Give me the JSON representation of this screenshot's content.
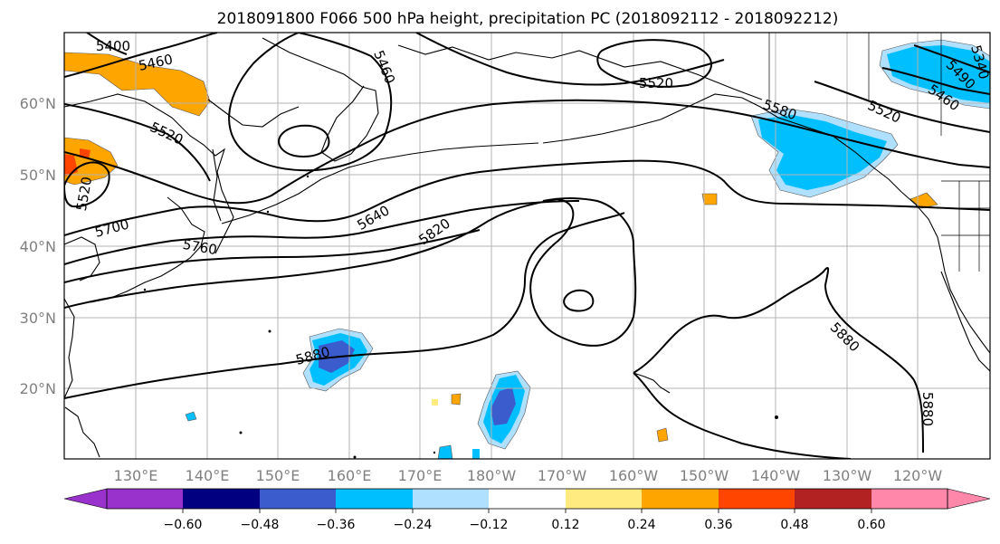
{
  "title": "2018091800 F066 500 hPa height, precipitation PC (2018092112 - 2018092212)",
  "map": {
    "lat_ticks": [
      "60°N",
      "50°N",
      "40°N",
      "30°N",
      "20°N"
    ],
    "lon_ticks": [
      "130°E",
      "140°E",
      "150°E",
      "160°E",
      "170°E",
      "180°W",
      "170°W",
      "160°W",
      "150°W",
      "140°W",
      "130°W",
      "120°W"
    ],
    "contour_labels": [
      "5400",
      "5460",
      "5460",
      "5520",
      "5520",
      "5520",
      "5520",
      "5580",
      "5640",
      "5700",
      "5760",
      "5820",
      "5880",
      "5880",
      "5880",
      "5460",
      "5490",
      "5340"
    ]
  },
  "colorbar": {
    "ticks": [
      "−0.60",
      "−0.48",
      "−0.36",
      "−0.24",
      "−0.12",
      "0.12",
      "0.24",
      "0.36",
      "0.48",
      "0.60"
    ],
    "colors": [
      "#9932cc",
      "#000080",
      "#3a5ccc",
      "#00bfff",
      "#b0e0ff",
      "#ffffff",
      "#ffeb80",
      "#ffa500",
      "#ff4500",
      "#b22222",
      "#ff88aa"
    ]
  }
}
